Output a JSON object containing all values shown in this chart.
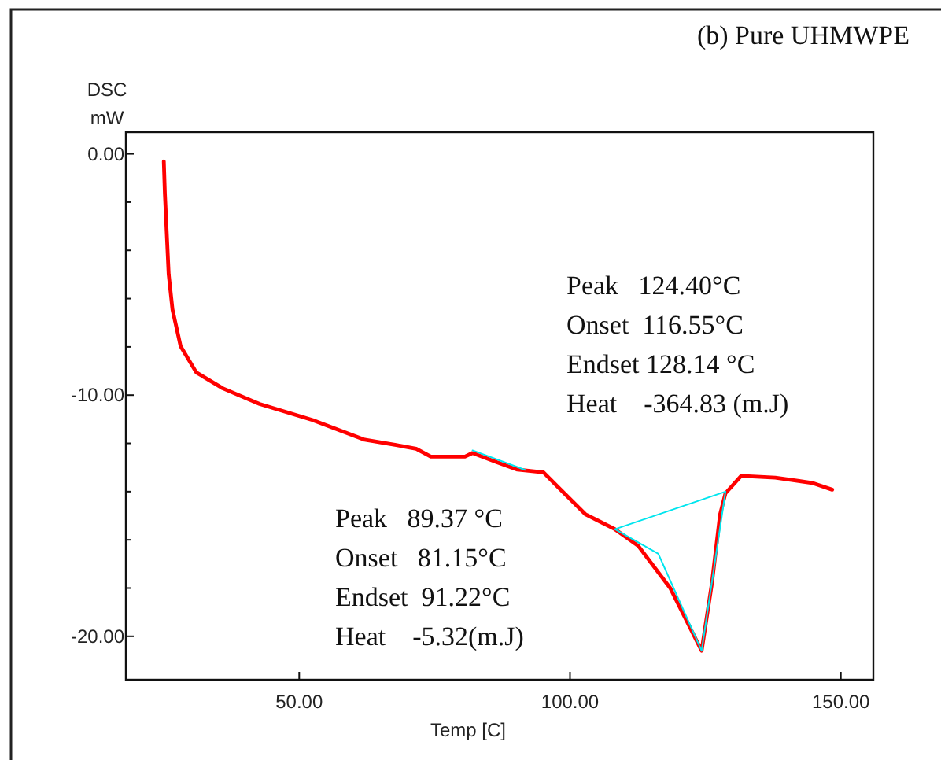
{
  "chart_data": {
    "type": "line",
    "title": "(b) Pure UHMWPE",
    "xlabel": "Temp [C]",
    "ylabel": "DSC\nmW",
    "xlim": [
      18,
      156
    ],
    "ylim": [
      -21.8,
      0.9
    ],
    "xticks": [
      {
        "value": 50,
        "label": "50.00"
      },
      {
        "value": 100,
        "label": "100.00"
      },
      {
        "value": 150,
        "label": "150.00"
      }
    ],
    "yticks": [
      {
        "value": 0,
        "label": "0.00"
      },
      {
        "value": -2,
        "label": null
      },
      {
        "value": -4,
        "label": null
      },
      {
        "value": -6,
        "label": null
      },
      {
        "value": -8,
        "label": null
      },
      {
        "value": -10,
        "label": "-10.00"
      },
      {
        "value": -12,
        "label": null
      },
      {
        "value": -14,
        "label": null
      },
      {
        "value": -16,
        "label": null
      },
      {
        "value": -18,
        "label": null
      },
      {
        "value": -20,
        "label": "-20.00"
      }
    ],
    "grid": false,
    "marker": "none",
    "line_style": "solid",
    "series": [
      {
        "color": "#ff0000",
        "x": [
          25.0,
          25.2,
          25.9,
          26.6,
          28.1,
          31.0,
          35.9,
          42.7,
          52.4,
          62.1,
          67.9,
          71.6,
          74.3,
          80.6,
          82.0,
          86.4,
          90.3,
          95.1,
          98.0,
          102.9,
          108.3,
          112.6,
          118.5,
          124.3,
          126.2,
          127.7,
          128.7,
          131.6,
          137.9,
          144.7,
          148.4
        ],
        "values": [
          -0.31,
          -1.65,
          -4.99,
          -6.45,
          -7.97,
          -9.06,
          -9.72,
          -10.37,
          -11.03,
          -11.85,
          -12.07,
          -12.22,
          -12.55,
          -12.55,
          -12.4,
          -12.77,
          -13.09,
          -13.2,
          -13.86,
          -14.95,
          -15.56,
          -16.25,
          -18.0,
          -20.6,
          -17.8,
          -14.95,
          -14.07,
          -13.35,
          -13.42,
          -13.64,
          -13.92
        ]
      },
      {
        "color": "#00e5ee",
        "x": [
          82.0,
          91.7
        ],
        "values": [
          -12.29,
          -13.1
        ]
      },
      {
        "color": "#00e5ee",
        "x": [
          108.3,
          116.3,
          124.3
        ],
        "values": [
          -15.56,
          -16.58,
          -20.6
        ]
      },
      {
        "color": "#00e5ee",
        "x": [
          124.3,
          128.7
        ],
        "values": [
          -20.6,
          -14.0
        ]
      },
      {
        "color": "#00e5ee",
        "x": [
          108.3,
          128.7
        ],
        "values": [
          -15.56,
          -14.0
        ]
      }
    ],
    "annotations": [
      "Peak   124.40°C",
      "Onset  116.55°C",
      "Endset 128.14 °C",
      "Heat    -364.83 (m.J)",
      "Peak   89.37 °C",
      "Onset   81.15°C",
      "Endset  91.22°C",
      "Heat    -5.32(m.J)"
    ]
  }
}
